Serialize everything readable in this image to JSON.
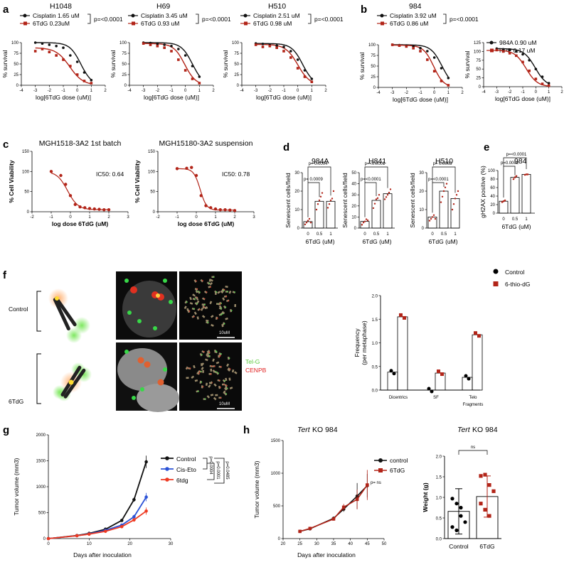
{
  "panels": {
    "a": {
      "letter": "a",
      "charts": [
        {
          "title": "H1048",
          "legend": [
            "Cisplatin 1.65 uM",
            "6TdG     0.23uM"
          ],
          "p": "p=<0.0001",
          "xlabel": "log[6TdG dose (uM)]",
          "ylabel": "% survival"
        },
        {
          "title": "H69",
          "legend": [
            "Cisplatin 3.45 uM",
            "6TdG      0.93 uM"
          ],
          "p": "p=<0.0001",
          "xlabel": "log[6TdG dose (uM)]",
          "ylabel": "% survival"
        },
        {
          "title": "H510",
          "legend": [
            "Cisplatin 2.51 uM",
            "6TdG      0.98 uM"
          ],
          "p": "p=<0.0001",
          "xlabel": "log[6TdG dose (uM)]",
          "ylabel": "% survival"
        }
      ]
    },
    "b": {
      "letter": "b",
      "title": "984",
      "charts": [
        {
          "legend": [
            "Cisplatin 3.92 uM",
            "6TdG      0.86 uM"
          ],
          "p": "p=<0.0001",
          "xlabel": "log[6TdG dose (uM)]",
          "ylabel": "% survival"
        },
        {
          "legend": [
            "984A  0.90 uM",
            "RPP   0.17 uM"
          ],
          "xlabel": "log[6TdG dose (uM)]",
          "ylabel": "% survival"
        }
      ]
    },
    "c": {
      "letter": "c",
      "charts": [
        {
          "title": "MGH1518-3A2 1st batch",
          "ic50": "IC50: 0.64",
          "xlabel": "log dose 6TdG (uM)",
          "ylabel": "% Cell Viability"
        },
        {
          "title": "MGH15180-3A2 suspension",
          "ic50": "IC50: 0.78",
          "xlabel": "log dose 6TdG (uM)",
          "ylabel": "% Cell Viability"
        }
      ]
    },
    "d": {
      "letter": "d",
      "ylabel": "Senescent cells/field",
      "xlabel": "6TdG (uM)",
      "charts": [
        {
          "title": "984A",
          "p_top": "p= 0.0004",
          "p_mid": "p= 0.0009"
        },
        {
          "title": "H841",
          "p_top": "p=<0.0001",
          "p_mid": "p=<0.0001"
        },
        {
          "title": "H510",
          "p_top": "p= 0.0008",
          "p_mid": "p=<0.0001"
        }
      ]
    },
    "e": {
      "letter": "e",
      "title": "984",
      "ylabel": "gH2AX positive (%)",
      "xlabel": "6TdG (uM)",
      "p_top": "p=<0.0001",
      "p_mid": "p=0.0002"
    },
    "f": {
      "letter": "f",
      "row_labels": [
        "Control",
        "6TdG"
      ],
      "scale_bar": "10uM",
      "stain_labels": [
        "Tel-G",
        "CENPB"
      ],
      "legend": [
        "Control",
        "6-thio-dG"
      ],
      "ylabel": "Frequency",
      "ylabel2": "(per metaphase)",
      "categories": [
        "Dicentrics",
        "SF",
        "Telo",
        "Fragments"
      ]
    },
    "g": {
      "letter": "g",
      "ylabel": "Tumor volume (mm3)",
      "xlabel": "Days after inoculation",
      "legend": [
        "Control",
        "Cis-Eto",
        "6tdg"
      ],
      "p_values": [
        "p=0.0004",
        "p=0.0001",
        "p=0.0485"
      ]
    },
    "h": {
      "letter": "h",
      "title_italic": "Tert",
      "title_rest": " KO 984",
      "ylabel": "Tumor volume (mm3)",
      "xlabel": "Days after inoculation",
      "legend": [
        "control",
        "6TdG"
      ],
      "p": "p= ns",
      "bar_ylabel": "Weight (g)",
      "bar_categories": [
        "Control",
        "6TdG"
      ],
      "bar_ns": "ns"
    }
  },
  "colors": {
    "black": "#111111",
    "red": "#b22418",
    "blue": "#2b52d6",
    "orange_red": "#ee3a22"
  },
  "chart_data": [
    {
      "type": "line",
      "title": "H1048",
      "xlabel": "log[6TdG dose (uM)]",
      "ylabel": "% survival",
      "xlim": [
        -4,
        2
      ],
      "ylim": [
        0,
        100
      ],
      "series": [
        {
          "name": "Cisplatin 1.65 uM",
          "x": [
            -3,
            -2.5,
            -2,
            -1.5,
            -1,
            -0.5,
            0,
            0.5,
            1
          ],
          "y": [
            100,
            98,
            95,
            92,
            88,
            70,
            55,
            30,
            12
          ]
        },
        {
          "name": "6TdG 0.23uM",
          "x": [
            -3,
            -2.5,
            -2,
            -1.5,
            -1,
            -0.5,
            0,
            0.5,
            1
          ],
          "y": [
            80,
            85,
            78,
            70,
            60,
            45,
            25,
            10,
            5
          ]
        }
      ]
    },
    {
      "type": "line",
      "title": "H69",
      "xlabel": "log[6TdG dose (uM)]",
      "ylabel": "% survival",
      "xlim": [
        -4,
        2
      ],
      "ylim": [
        0,
        100
      ],
      "series": [
        {
          "name": "Cisplatin 3.45 uM",
          "x": [
            -3,
            -2.5,
            -2,
            -1.5,
            -1,
            -0.5,
            0,
            0.5,
            1
          ],
          "y": [
            100,
            99,
            97,
            95,
            92,
            85,
            70,
            45,
            20
          ]
        },
        {
          "name": "6TdG 0.93 uM",
          "x": [
            -3,
            -2.5,
            -2,
            -1.5,
            -1,
            -0.5,
            0,
            0.5,
            1
          ],
          "y": [
            98,
            95,
            92,
            88,
            80,
            60,
            35,
            15,
            5
          ]
        }
      ]
    },
    {
      "type": "line",
      "title": "H510",
      "xlabel": "log[6TdG dose (uM)]",
      "ylabel": "% survival",
      "xlim": [
        -4,
        2
      ],
      "ylim": [
        0,
        100
      ],
      "series": [
        {
          "name": "Cisplatin 2.51 uM",
          "x": [
            -3,
            -2.5,
            -2,
            -1.5,
            -1,
            -0.5,
            0,
            0.5,
            1
          ],
          "y": [
            98,
            97,
            95,
            93,
            90,
            80,
            60,
            35,
            15
          ]
        },
        {
          "name": "6TdG 0.98 uM",
          "x": [
            -3,
            -2.5,
            -2,
            -1.5,
            -1,
            -0.5,
            0,
            0.5,
            1
          ],
          "y": [
            95,
            90,
            92,
            88,
            80,
            65,
            40,
            20,
            8
          ]
        }
      ]
    },
    {
      "type": "line",
      "title": "984",
      "xlabel": "log[6TdG dose (uM)]",
      "ylabel": "% survival",
      "xlim": [
        -4,
        2
      ],
      "ylim": [
        0,
        100
      ],
      "series": [
        {
          "name": "Cisplatin 3.92 uM",
          "x": [
            -3,
            -2.5,
            -2,
            -1.5,
            -1,
            -0.5,
            0,
            0.5,
            1
          ],
          "y": [
            100,
            99,
            98,
            96,
            92,
            85,
            70,
            45,
            22
          ]
        },
        {
          "name": "6TdG 0.86 uM",
          "x": [
            -3,
            -2.5,
            -2,
            -1.5,
            -1,
            -0.5,
            0,
            0.5,
            1
          ],
          "y": [
            100,
            98,
            96,
            92,
            85,
            65,
            38,
            15,
            5
          ]
        }
      ]
    },
    {
      "type": "line",
      "xlabel": "log[6TdG dose (uM)]",
      "ylabel": "% survival",
      "xlim": [
        -4,
        2
      ],
      "ylim": [
        0,
        125
      ],
      "series": [
        {
          "name": "984A 0.90 uM",
          "x": [
            -3,
            -2.5,
            -2,
            -1.5,
            -1,
            -0.5,
            0,
            0.5,
            1
          ],
          "y": [
            108,
            106,
            104,
            100,
            92,
            75,
            50,
            28,
            10
          ]
        },
        {
          "name": "RPP 0.17 uM",
          "x": [
            -3,
            -2.5,
            -2,
            -1.5,
            -1,
            -0.5,
            0,
            0.5,
            1
          ],
          "y": [
            104,
            100,
            95,
            88,
            70,
            45,
            22,
            8,
            3
          ]
        }
      ]
    },
    {
      "type": "scatter",
      "title": "MGH1518-3A2 1st batch",
      "xlabel": "log dose 6TdG (uM)",
      "ylabel": "% Cell Viability",
      "xlim": [
        -2,
        3
      ],
      "ylim": [
        0,
        150
      ],
      "series": [
        {
          "x": [
            -1,
            -0.5,
            -0.25,
            0,
            0.25,
            0.5,
            0.75,
            1,
            1.25,
            1.5,
            1.75,
            2
          ],
          "y": [
            100,
            90,
            68,
            40,
            18,
            12,
            10,
            8,
            7,
            6,
            5,
            5
          ]
        }
      ]
    },
    {
      "type": "scatter",
      "title": "MGH15180-3A2 suspension",
      "xlabel": "log dose 6TdG (uM)",
      "ylabel": "% Cell Viability",
      "xlim": [
        -2,
        3
      ],
      "ylim": [
        0,
        150
      ],
      "series": [
        {
          "x": [
            -1,
            -0.5,
            -0.25,
            0,
            0.25,
            0.5,
            0.75,
            1,
            1.25,
            1.5,
            1.75,
            2
          ],
          "y": [
            107,
            108,
            110,
            90,
            40,
            15,
            10,
            7,
            5,
            5,
            4,
            3
          ]
        }
      ]
    },
    {
      "type": "bar",
      "title": "984A",
      "categories": [
        "0",
        "0.5",
        "1"
      ],
      "values": [
        3.5,
        14.5,
        14.5
      ],
      "ylim": [
        0,
        30
      ],
      "xlabel": "6TdG (uM)",
      "ylabel": "Senescent cells/field"
    },
    {
      "type": "bar",
      "title": "H841",
      "categories": [
        "0",
        "0.5",
        "1"
      ],
      "values": [
        6,
        25,
        31
      ],
      "ylim": [
        0,
        50
      ],
      "xlabel": "6TdG (uM)",
      "ylabel": "Senescent cells/field"
    },
    {
      "type": "bar",
      "title": "H510",
      "categories": [
        "0",
        "0.5",
        "1"
      ],
      "values": [
        6,
        20,
        16
      ],
      "ylim": [
        0,
        30
      ],
      "xlabel": "6TdG (uM)",
      "ylabel": "Senescent cells/field"
    },
    {
      "type": "bar",
      "title": "984",
      "categories": [
        "0",
        "0.5",
        "1"
      ],
      "values": [
        28,
        84,
        91
      ],
      "ylim": [
        0,
        100
      ],
      "xlabel": "6TdG (uM)",
      "ylabel": "gH2AX positive (%)"
    },
    {
      "type": "bar",
      "categories": [
        "Dicentrics",
        "SF",
        "Telo Fragments"
      ],
      "ylim": [
        0,
        2.0
      ],
      "ylabel": "Frequency (per metaphase)",
      "series": [
        {
          "name": "Control",
          "values": [
            0.38,
            0.0,
            0.27
          ]
        },
        {
          "name": "6-thio-dG",
          "values": [
            1.55,
            0.36,
            1.17
          ]
        }
      ]
    },
    {
      "type": "line",
      "xlabel": "Days after inoculation",
      "ylabel": "Tumor volume (mm3)",
      "xlim": [
        0,
        30
      ],
      "ylim": [
        0,
        2000
      ],
      "series": [
        {
          "name": "Control",
          "x": [
            0,
            7,
            10,
            14,
            18,
            21,
            24
          ],
          "y": [
            0,
            60,
            100,
            180,
            350,
            750,
            1480
          ]
        },
        {
          "name": "Cis-Eto",
          "x": [
            0,
            7,
            10,
            14,
            18,
            21,
            24
          ],
          "y": [
            0,
            55,
            90,
            160,
            260,
            420,
            800
          ]
        },
        {
          "name": "6tdg",
          "x": [
            0,
            7,
            10,
            14,
            18,
            21,
            24
          ],
          "y": [
            0,
            55,
            85,
            140,
            230,
            360,
            530
          ]
        }
      ]
    },
    {
      "type": "line",
      "title": "Tert KO 984",
      "xlabel": "Days after inoculation",
      "ylabel": "Tumor volume (mm3)",
      "xlim": [
        20,
        50
      ],
      "ylim": [
        0,
        1500
      ],
      "series": [
        {
          "name": "control",
          "x": [
            25,
            28,
            35,
            38,
            42,
            45
          ],
          "y": [
            110,
            150,
            310,
            450,
            650,
            810
          ]
        },
        {
          "name": "6TdG",
          "x": [
            25,
            28,
            35,
            38,
            42,
            45
          ],
          "y": [
            110,
            155,
            300,
            480,
            600,
            820
          ]
        }
      ]
    },
    {
      "type": "bar",
      "title": "Tert KO 984",
      "categories": [
        "Control",
        "6TdG"
      ],
      "values": [
        0.66,
        1.02
      ],
      "ylim": [
        0,
        2.0
      ],
      "ylabel": "Weight (g)"
    }
  ]
}
